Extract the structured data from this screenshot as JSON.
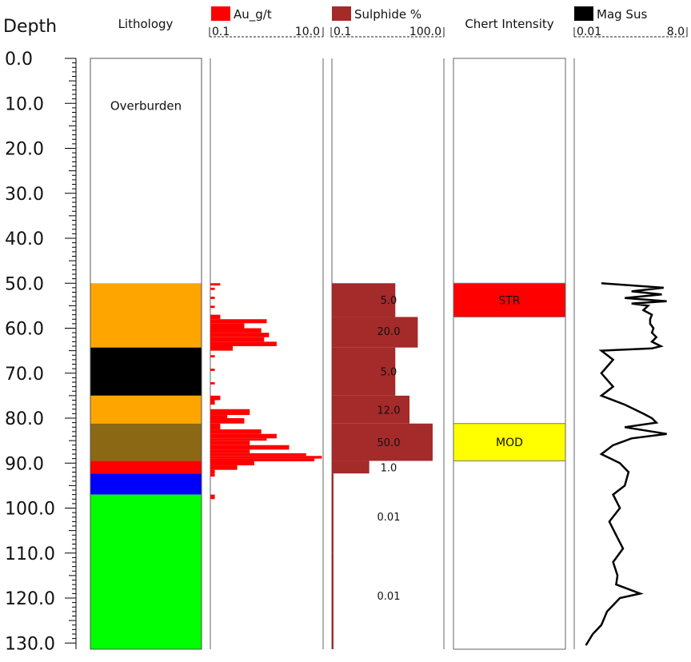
{
  "chart_data": {
    "type": "strip_log",
    "depth_axis": {
      "title": "Depth",
      "range": [
        0,
        130
      ],
      "major_step": 10,
      "tick_labels": [
        "0.0",
        "10.0",
        "20.0",
        "30.0",
        "40.0",
        "50.0",
        "60.0",
        "70.0",
        "80.0",
        "90.0",
        "100.0",
        "110.0",
        "120.0",
        "130.0"
      ]
    },
    "lithology": {
      "title": "Lithology",
      "intervals": [
        {
          "from": 0.0,
          "to": 50.0,
          "color": "#ffffff",
          "label": "Overburden"
        },
        {
          "from": 50.0,
          "to": 64.3,
          "color": "#ffa500",
          "label": ""
        },
        {
          "from": 64.3,
          "to": 75.0,
          "color": "#000000",
          "label": ""
        },
        {
          "from": 75.0,
          "to": 81.2,
          "color": "#ffa500",
          "label": ""
        },
        {
          "from": 81.2,
          "to": 89.5,
          "color": "#8b6914",
          "label": ""
        },
        {
          "from": 89.5,
          "to": 92.3,
          "color": "#ff0000",
          "label": ""
        },
        {
          "from": 92.3,
          "to": 97.0,
          "color": "#0000ff",
          "label": ""
        },
        {
          "from": 97.0,
          "to": 132.0,
          "color": "#00ff00",
          "label": ""
        }
      ]
    },
    "au": {
      "name": "Au_g/t",
      "color": "#ff0000",
      "scale_labels": [
        "0.1",
        "10.0"
      ],
      "range": [
        0.1,
        10.0
      ],
      "samples": [
        {
          "from": 50.0,
          "to": 50.5,
          "value": 0.15
        },
        {
          "from": 51.0,
          "to": 51.5,
          "value": 0.12
        },
        {
          "from": 53.0,
          "to": 53.5,
          "value": 0.12
        },
        {
          "from": 55.0,
          "to": 55.5,
          "value": 0.12
        },
        {
          "from": 57.0,
          "to": 58.0,
          "value": 0.15
        },
        {
          "from": 58.0,
          "to": 58.9,
          "value": 1.0
        },
        {
          "from": 58.9,
          "to": 60.0,
          "value": 0.4
        },
        {
          "from": 60.0,
          "to": 61.0,
          "value": 0.8
        },
        {
          "from": 61.0,
          "to": 62.0,
          "value": 1.1
        },
        {
          "from": 62.0,
          "to": 63.0,
          "value": 0.9
        },
        {
          "from": 63.0,
          "to": 64.0,
          "value": 1.5
        },
        {
          "from": 64.0,
          "to": 65.0,
          "value": 0.25
        },
        {
          "from": 66.0,
          "to": 66.5,
          "value": 0.12
        },
        {
          "from": 69.0,
          "to": 69.5,
          "value": 0.12
        },
        {
          "from": 72.0,
          "to": 72.5,
          "value": 0.12
        },
        {
          "from": 75.0,
          "to": 76.0,
          "value": 0.15
        },
        {
          "from": 76.0,
          "to": 77.0,
          "value": 0.12
        },
        {
          "from": 78.0,
          "to": 79.3,
          "value": 0.5
        },
        {
          "from": 79.3,
          "to": 80.0,
          "value": 0.2
        },
        {
          "from": 80.0,
          "to": 81.2,
          "value": 0.4
        },
        {
          "from": 81.2,
          "to": 82.5,
          "value": 0.15
        },
        {
          "from": 82.5,
          "to": 83.5,
          "value": 0.8
        },
        {
          "from": 83.5,
          "to": 84.5,
          "value": 1.5
        },
        {
          "from": 84.5,
          "to": 85.0,
          "value": 1.0
        },
        {
          "from": 85.0,
          "to": 86.0,
          "value": 0.5
        },
        {
          "from": 86.0,
          "to": 87.0,
          "value": 2.5
        },
        {
          "from": 87.0,
          "to": 87.8,
          "value": 0.5
        },
        {
          "from": 87.8,
          "to": 88.4,
          "value": 5.0
        },
        {
          "from": 88.4,
          "to": 89.0,
          "value": 9.5
        },
        {
          "from": 89.0,
          "to": 89.6,
          "value": 7.0
        },
        {
          "from": 89.6,
          "to": 90.5,
          "value": 0.6
        },
        {
          "from": 90.5,
          "to": 91.5,
          "value": 0.3
        },
        {
          "from": 91.5,
          "to": 92.3,
          "value": 0.12
        },
        {
          "from": 92.3,
          "to": 93.0,
          "value": 0.12
        },
        {
          "from": 97.0,
          "to": 98.0,
          "value": 0.12
        }
      ]
    },
    "sulphide": {
      "name": "Sulphide %",
      "color": "#a52a2a",
      "scale_labels": [
        "0.1",
        "100.0"
      ],
      "range": [
        0.1,
        100.0
      ],
      "samples": [
        {
          "from": 50.0,
          "to": 57.5,
          "value": 5.0
        },
        {
          "from": 57.5,
          "to": 64.3,
          "value": 20.0
        },
        {
          "from": 64.3,
          "to": 75.0,
          "value": 5.0
        },
        {
          "from": 75.0,
          "to": 81.2,
          "value": 12.0
        },
        {
          "from": 81.2,
          "to": 89.5,
          "value": 50.0
        },
        {
          "from": 89.5,
          "to": 92.3,
          "value": 1.0
        },
        {
          "from": 92.3,
          "to": 110.0,
          "value": 0.01
        },
        {
          "from": 110.0,
          "to": 132.0,
          "value": 0.01
        }
      ],
      "value_labels": [
        {
          "depth": 53.7,
          "text": "5.0"
        },
        {
          "depth": 60.6,
          "text": "20.0"
        },
        {
          "depth": 69.6,
          "text": "5.0"
        },
        {
          "depth": 78.1,
          "text": "12.0"
        },
        {
          "depth": 85.3,
          "text": "50.0"
        },
        {
          "depth": 90.9,
          "text": "1.0"
        },
        {
          "depth": 101.9,
          "text": "0.01"
        },
        {
          "depth": 119.5,
          "text": "0.01"
        }
      ]
    },
    "chert": {
      "title": "Chert Intensity",
      "intervals": [
        {
          "from": 50.0,
          "to": 57.5,
          "color": "#ff0000",
          "label": "STR"
        },
        {
          "from": 81.2,
          "to": 89.5,
          "color": "#ffff00",
          "label": "MOD"
        }
      ]
    },
    "magsus": {
      "name": "Mag Sus",
      "color": "#000000",
      "scale_labels": [
        "0.01",
        "8.0"
      ],
      "range": [
        0.01,
        8.0
      ],
      "points": [
        [
          50.0,
          0.05
        ],
        [
          51.0,
          2.0
        ],
        [
          51.8,
          0.3
        ],
        [
          52.5,
          1.8
        ],
        [
          53.3,
          0.2
        ],
        [
          54.0,
          2.4
        ],
        [
          54.5,
          0.3
        ],
        [
          55.0,
          0.8
        ],
        [
          56.0,
          0.6
        ],
        [
          57.0,
          1.0
        ],
        [
          58.0,
          0.9
        ],
        [
          59.0,
          0.9
        ],
        [
          60.0,
          1.1
        ],
        [
          61.0,
          1.0
        ],
        [
          62.0,
          1.3
        ],
        [
          63.0,
          1.0
        ],
        [
          64.0,
          1.7
        ],
        [
          64.5,
          1.0
        ],
        [
          65.0,
          0.05
        ],
        [
          67.0,
          0.1
        ],
        [
          70.0,
          0.05
        ],
        [
          73.0,
          0.1
        ],
        [
          75.0,
          0.05
        ],
        [
          77.0,
          0.2
        ],
        [
          79.0,
          0.6
        ],
        [
          80.0,
          1.0
        ],
        [
          81.0,
          1.3
        ],
        [
          82.0,
          0.2
        ],
        [
          83.5,
          2.4
        ],
        [
          84.5,
          0.3
        ],
        [
          86.0,
          0.1
        ],
        [
          88.0,
          0.05
        ],
        [
          90.0,
          0.15
        ],
        [
          92.0,
          0.25
        ],
        [
          95.0,
          0.2
        ],
        [
          97.0,
          0.1
        ],
        [
          100.0,
          0.15
        ],
        [
          103.0,
          0.08
        ],
        [
          106.0,
          0.12
        ],
        [
          109.0,
          0.18
        ],
        [
          112.0,
          0.1
        ],
        [
          115.0,
          0.13
        ],
        [
          117.0,
          0.12
        ],
        [
          119.0,
          0.5
        ],
        [
          120.0,
          0.15
        ],
        [
          123.0,
          0.07
        ],
        [
          126.0,
          0.05
        ],
        [
          128.0,
          0.03
        ],
        [
          130.5,
          0.02
        ]
      ]
    }
  }
}
